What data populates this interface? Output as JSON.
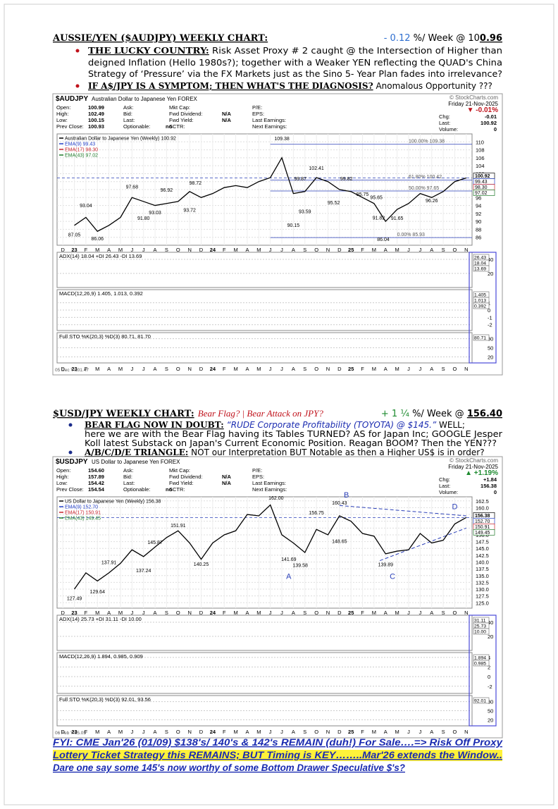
{
  "section1": {
    "heading": "AUSSIE/YEN ($AUDJPY) WEEKLY CHART:",
    "rate": "- 0.12",
    "rate_text": " %/ Week @ 10",
    "rate_tail": "0.96",
    "bullets": [
      {
        "lead": "THE LUCKY COUNTRY:",
        "lines": [
          "Risk Asset Proxy # 2 caught @ the Intersection of Higher than",
          "deigned Inflation (Hello 1980s?); together with a Weaker YEN reflecting the QUAD's China",
          "Strategy of ‘Pressure’ via the FX Markets just as the Sino 5- Year Plan fades into irrelevance?"
        ]
      },
      {
        "lead": "IF A$/JPY IS A SYMPTOM; THEN WHAT'S THE DIAGNOSIS?",
        "lines": [
          "Anomalous Opportunity ???"
        ]
      }
    ]
  },
  "chart1": {
    "symbol": "$AUDJPY",
    "name": "Australian Dollar to Japanese Yen FOREX",
    "source": "© StockCharts.com",
    "date": "Friday 21-Nov-2025",
    "info": [
      [
        [
          "Open:",
          "100.99"
        ],
        [
          "High:",
          "102.49"
        ],
        [
          "Low:",
          "100.15"
        ],
        [
          "Prev Close:",
          "100.93"
        ]
      ],
      [
        [
          "Ask:"
        ],
        [
          "Bid:"
        ],
        [
          "Last:"
        ],
        [
          "Optionable:",
          "no"
        ]
      ],
      [
        [
          "Mkt Cap:"
        ],
        [
          "Fwd Dividend:",
          "N/A"
        ],
        [
          "Fwd Yield:",
          "N/A"
        ],
        [
          "SCTR:"
        ]
      ],
      [
        [
          "P/E:"
        ],
        [
          "EPS:"
        ],
        [
          "Last Earnings:"
        ],
        [
          "Next Earnings:"
        ]
      ]
    ],
    "change": "▼ -0.01%",
    "change_color": "#c0121b",
    "quote": [
      [
        "Chg:",
        "-0.01"
      ],
      [
        "Last:",
        "100.92"
      ],
      [
        "Volume:",
        "0"
      ]
    ],
    "legend": [
      {
        "name": "Australian Dollar to Japanese Yen (Weekly) 100.92",
        "color": "#000000"
      },
      {
        "name": "EMA(9) 99.43",
        "color": "#2340c8"
      },
      {
        "name": "EMA(17) 98.30",
        "color": "#c8232d"
      },
      {
        "name": "EMA(43) 97.02",
        "color": "#1f7a2a"
      }
    ],
    "price": {
      "values": [
        89,
        91,
        87.5,
        89,
        91,
        96,
        95,
        94,
        94.5,
        95,
        97.5,
        96,
        97,
        98.5,
        99,
        98.5,
        100,
        101,
        106,
        97,
        97.5,
        101,
        100,
        98,
        97.5,
        96,
        94.5,
        90,
        93,
        94.5,
        97,
        96,
        97.5,
        100,
        100.92
      ],
      "ylim": [
        84,
        112
      ],
      "yticks": [
        86,
        88,
        90,
        92,
        94,
        96,
        98,
        100,
        102,
        104,
        106,
        108,
        110
      ],
      "color": "#000000"
    },
    "last_labels": [
      "100.92",
      "99.43",
      "98.30",
      "97.02"
    ],
    "annotations": [
      "87.05",
      "86.06",
      "93.04",
      "97.68",
      "91.80",
      "93.03",
      "96.92",
      "93.72",
      "98.72",
      "109.38",
      "99.87",
      "90.15",
      "93.59",
      "102.41",
      "95.52",
      "99.82",
      "95.75",
      "95.65",
      "91.82",
      "91.65",
      "86.04",
      "96.26"
    ],
    "fib_labels": [
      "100.00% 109.38",
      "61.80% 100.42",
      "50.00% 97.65",
      "0.00% 85.93"
    ],
    "fib_levels": [
      109.38,
      100.42,
      97.65,
      85.93
    ],
    "months": [
      "D",
      "23",
      "F",
      "M",
      "A",
      "M",
      "J",
      "J",
      "A",
      "S",
      "O",
      "N",
      "D",
      "24",
      "F",
      "M",
      "A",
      "M",
      "J",
      "J",
      "A",
      "S",
      "O",
      "N",
      "D",
      "25",
      "F",
      "M",
      "A",
      "M",
      "J",
      "J",
      "A",
      "S",
      "O",
      "N"
    ],
    "panels": [
      {
        "title": "ADX(14) 18.04 +DI 26.43 -DI 13.69",
        "ylim": [
          0,
          50
        ],
        "yticks": [
          20,
          40
        ],
        "labels": [
          "26.43",
          "18.04",
          "13.69"
        ]
      },
      {
        "title": "MACD(12,26,9) 1.405, 1.013, 0.392",
        "ylim": [
          -2.8,
          2.8
        ],
        "yticks": [
          -2,
          -1,
          0,
          1
        ],
        "labels": [
          "1.405",
          "1.013",
          "0.392"
        ]
      },
      {
        "title": "Full STO %K(20,3) %D(3) 80.71, 81.70",
        "ylim": [
          0,
          100
        ],
        "yticks": [
          20,
          50,
          80
        ],
        "labels": [
          "80.71"
        ]
      }
    ],
    "footer_date": "05 Dec Y:101.47"
  },
  "section2": {
    "heading": "$USD/JPY WEEKLY CHART:",
    "tag": "Bear Flag? | Bear Attack on JPY?",
    "rate": "+ 1 ¼",
    "rate_text": " %/ Week @ ",
    "rate_tail": "156.40",
    "bullets": [
      {
        "lead": "BEAR FLAG NOW IN DOUBT:",
        "quote": "“RUDE Corporate Profitability (TOYOTA) @ $145.”",
        "lines": [
          "WELL;",
          "here we are with the Bear Flag having its Tables TURNED? AS for Japan Inc; GOOGLE Jesper",
          "Koll latest Substack on Japan's Current Economic Position. Reagan BOOM? Then the YEN???"
        ]
      },
      {
        "lead": "A/B/C/D/E TRIANGLE:",
        "lines": [
          "NOT our Interpretation BUT Notable as then a Higher US$ is in order?"
        ]
      }
    ]
  },
  "chart2": {
    "symbol": "$USDJPY",
    "name": "US Dollar to Japanese Yen FOREX",
    "source": "© StockCharts.com",
    "date": "Friday 21-Nov-2025",
    "info": [
      [
        [
          "Open:",
          "154.60"
        ],
        [
          "High:",
          "157.89"
        ],
        [
          "Low:",
          "154.42"
        ],
        [
          "Prev Close:",
          "154.54"
        ]
      ],
      [
        [
          "Ask:"
        ],
        [
          "Bid:"
        ],
        [
          "Last:"
        ],
        [
          "Optionable:",
          "no"
        ]
      ],
      [
        [
          "Mkt Cap:"
        ],
        [
          "Fwd Dividend:",
          "N/A"
        ],
        [
          "Fwd Yield:",
          "N/A"
        ],
        [
          "SCTR:"
        ]
      ],
      [
        [
          "P/E:"
        ],
        [
          "EPS:"
        ],
        [
          "Last Earnings:"
        ],
        [
          "Next Earnings:"
        ]
      ]
    ],
    "change": "▲ +1.19%",
    "change_color": "#1c8a2e",
    "quote": [
      [
        "Chg:",
        "+1.84"
      ],
      [
        "Last:",
        "156.38"
      ],
      [
        "Volume:",
        "0"
      ]
    ],
    "legend": [
      {
        "name": "US Dollar to Japanese Yen (Weekly) 156.38",
        "color": "#000000"
      },
      {
        "name": "EMA(9) 152.70",
        "color": "#2340c8"
      },
      {
        "name": "EMA(17) 150.91",
        "color": "#c8232d"
      },
      {
        "name": "EMA(43) 149.45",
        "color": "#1f7a2a"
      }
    ],
    "price": {
      "values": [
        130,
        136,
        133,
        136,
        139.5,
        144.5,
        142,
        145.5,
        149,
        151.5,
        147,
        141,
        147,
        150,
        151.5,
        157.5,
        157,
        161,
        150,
        147,
        143.5,
        152,
        150,
        157,
        155,
        150.5,
        149.5,
        143,
        144,
        144.5,
        150.5,
        147,
        148,
        154,
        156.38
      ],
      "ylim": [
        123,
        164
      ],
      "yticks": [
        {
          "value": 125,
          "label": "125.0"
        },
        {
          "value": 127.5,
          "label": "127.5"
        },
        {
          "value": 130,
          "label": "130.0"
        },
        {
          "value": 132.5,
          "label": "132.5"
        },
        {
          "value": 135,
          "label": "135.0"
        },
        {
          "value": 137.5,
          "label": "137.5"
        },
        {
          "value": 140,
          "label": "140.0"
        },
        {
          "value": 142.5,
          "label": "142.5"
        },
        {
          "value": 145,
          "label": "145.0"
        },
        {
          "value": 147.5,
          "label": "147.5"
        },
        {
          "value": 150,
          "label": "150.0"
        },
        {
          "value": 152.5,
          "label": "152.5"
        },
        {
          "value": 155,
          "label": "155.0"
        },
        {
          "value": 157.5,
          "label": "157.5"
        },
        {
          "value": 160,
          "label": "160.0"
        },
        {
          "value": 162.5,
          "label": "162.5"
        }
      ],
      "color": "#000000"
    },
    "last_labels": [
      "156.38",
      "152.70",
      "150.91",
      "149.45"
    ],
    "annotations": [
      "127.49",
      "129.64",
      "137.91",
      "137.24",
      "145.87",
      "151.91",
      "140.25",
      "162.00",
      "141.69",
      "139.58",
      "156.75",
      "160.43",
      "148.65",
      "139.89",
      "A",
      "B",
      "C",
      "D"
    ],
    "months": [
      "D",
      "23",
      "F",
      "M",
      "A",
      "M",
      "J",
      "J",
      "A",
      "S",
      "O",
      "N",
      "D",
      "24",
      "F",
      "M",
      "A",
      "M",
      "J",
      "J",
      "A",
      "S",
      "O",
      "N",
      "D",
      "25",
      "F",
      "M",
      "A",
      "M",
      "J",
      "J",
      "A",
      "S",
      "O",
      "N"
    ],
    "panels": [
      {
        "title": "ADX(14) 25.73 +DI 31.11 -DI 10.00",
        "ylim": [
          0,
          50
        ],
        "yticks": [
          20,
          40
        ],
        "labels": [
          "31.11",
          "25.73",
          "10.00"
        ]
      },
      {
        "title": "MACD(12,26,9) 1.894, 0.985, 0.909",
        "ylim": [
          -3.5,
          5
        ],
        "yticks": [
          -2,
          0,
          2,
          4
        ],
        "labels": [
          "1.894",
          "0.985"
        ]
      },
      {
        "title": "Full STO %K(20,3) %D(3) 92.01, 93.56",
        "ylim": [
          0,
          100
        ],
        "yticks": [
          20,
          50,
          80
        ],
        "labels": [
          "92.01"
        ]
      }
    ],
    "footer_date": "06 Feb Y:65.05"
  },
  "footer": {
    "lines": [
      "FYI: CME Jan'26 (01/09) $138's/ 140's & 142's REMAIN (duh!) For Sale….=> Risk Off Proxy",
      "Lottery Ticket Strategy this REMAINS; BUT Timing is KEY……..Mar'26 extends the Window..",
      "Dare one say some 145's now worthy of some Bottom Drawer Speculative $'s?"
    ]
  }
}
